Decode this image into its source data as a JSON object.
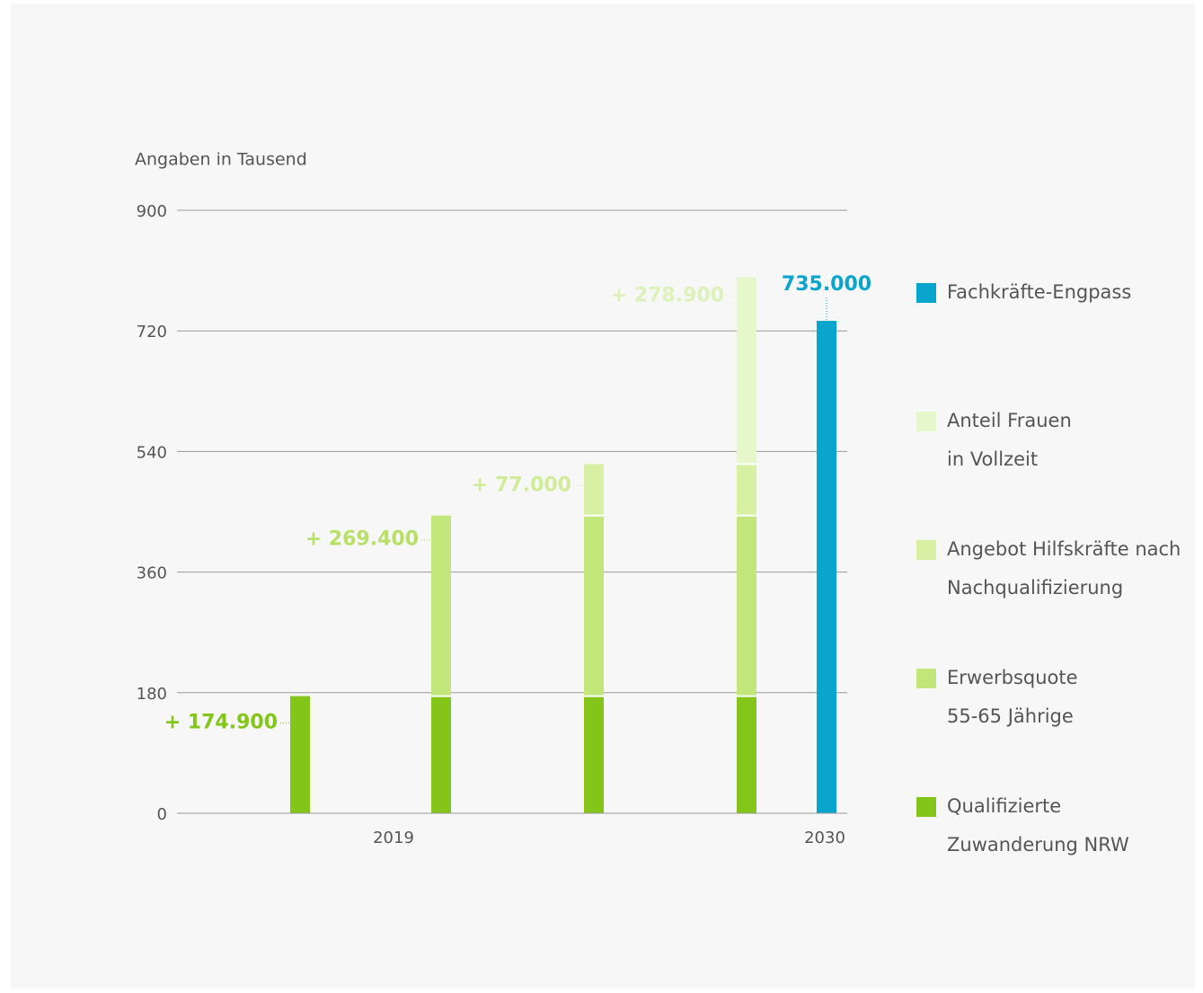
{
  "chart_data": {
    "type": "stacked-bar",
    "axis_title": "Angaben in Tausend",
    "categories": [
      null,
      null,
      null,
      null,
      null
    ],
    "x_axis_labels": [
      "2019",
      "2030"
    ],
    "ylim": [
      0,
      900
    ],
    "yticks": [
      0,
      180,
      360,
      540,
      720,
      900
    ],
    "grid": true,
    "series": [
      {
        "name": "Qualifizierte\nZuwanderung NRW",
        "color": "#84c51a",
        "label_color": "#84c51a",
        "values": [
          174.9,
          174.9,
          174.9,
          174.9,
          null
        ],
        "value_labels": [
          "+ 174.900",
          null,
          null,
          null,
          null
        ]
      },
      {
        "name": "Erwerbsquote\n55-65 Jährige",
        "color": "#c2e67a",
        "label_color": "#b8df66",
        "values": [
          null,
          269.4,
          269.4,
          269.4,
          null
        ],
        "value_labels": [
          null,
          "+ 269.400",
          null,
          null,
          null
        ]
      },
      {
        "name": "Angebot Hilfskräfte nach\nNachqualifizierung",
        "color": "#d8f0a4",
        "label_color": "#d0ec98",
        "values": [
          null,
          null,
          77,
          77,
          null
        ],
        "value_labels": [
          null,
          null,
          "+ 77.000",
          null,
          null
        ]
      },
      {
        "name": "Anteil Frauen\nin Vollzeit",
        "color": "#e6f7cc",
        "label_color": "#dcf2ba",
        "values": [
          null,
          null,
          null,
          278.9,
          null
        ],
        "value_labels": [
          null,
          null,
          null,
          "+ 278.900",
          null
        ]
      },
      {
        "name": "Fachkräfte-Engpass",
        "color": "#0aa5cc",
        "label_color": "#0aa5cc",
        "values": [
          null,
          null,
          null,
          null,
          735
        ],
        "value_labels": [
          null,
          null,
          null,
          null,
          "735.000"
        ]
      }
    ]
  }
}
